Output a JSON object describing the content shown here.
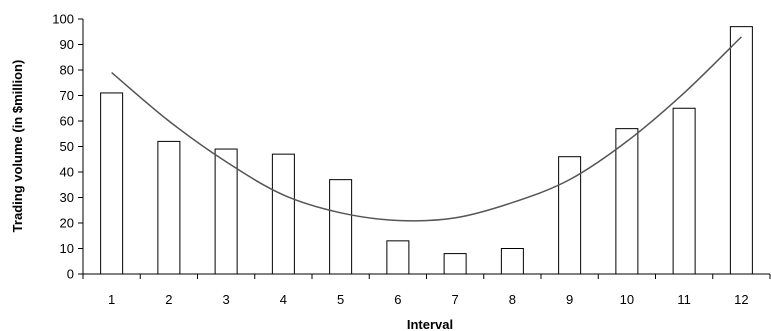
{
  "chart_data": {
    "type": "bar",
    "categories": [
      "1",
      "2",
      "3",
      "4",
      "5",
      "6",
      "7",
      "8",
      "9",
      "10",
      "11",
      "12"
    ],
    "values": [
      71,
      52,
      49,
      47,
      37,
      13,
      8,
      10,
      46,
      57,
      65,
      97
    ],
    "trend": {
      "type": "line",
      "values": [
        79,
        60,
        44,
        31,
        24,
        21,
        22,
        28,
        37,
        52,
        71,
        93
      ]
    },
    "title": "",
    "xlabel": "Interval",
    "ylabel": "Trading volume (in $million)",
    "ylim": [
      0,
      100
    ],
    "yticks": [
      0,
      10,
      20,
      30,
      40,
      50,
      60,
      70,
      80,
      90,
      100
    ],
    "grid": false,
    "legend": false,
    "colors": {
      "bar_fill": "#ffffff",
      "bar_stroke": "#000000",
      "trend_line": "#555555",
      "axis": "#000000"
    }
  }
}
